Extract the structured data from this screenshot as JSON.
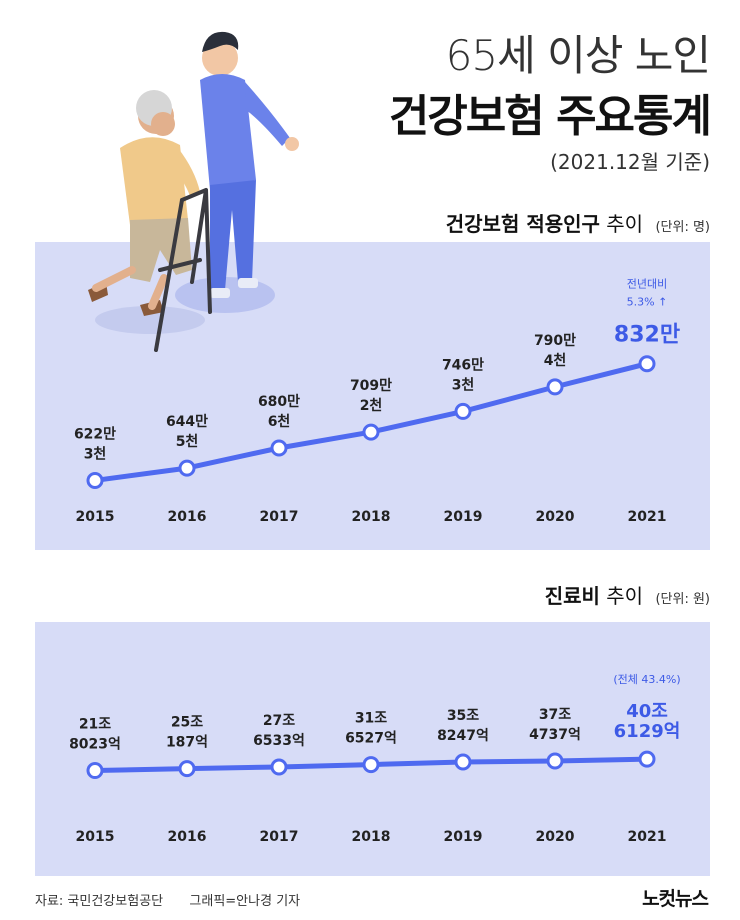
{
  "header": {
    "title_line1": "65세 이상 노인",
    "title_line2": "건강보험 주요통계",
    "basis": "(2021.12월 기준)"
  },
  "section1": {
    "title_bold": "건강보험 적용인구",
    "title_rest": "추이",
    "unit": "(단위: 명)",
    "yoy_label": "전년대비",
    "yoy_value": "5.3% ↑"
  },
  "section2": {
    "title_bold": "진료비",
    "title_rest": "추이",
    "unit": "(단위: 원)",
    "share_label": "(전체 43.4%)"
  },
  "footer": {
    "source": "자료: 국민건강보험공단",
    "credit": "그래픽=안나경 기자",
    "logo": "노컷뉴스"
  },
  "colors": {
    "panel": "#d7dcf7",
    "line": "#4f6af0",
    "highlight": "#3d5ae6"
  },
  "chart_data": [
    {
      "type": "line",
      "title": "건강보험 적용인구 추이",
      "unit": "명",
      "x": [
        "2015",
        "2016",
        "2017",
        "2018",
        "2019",
        "2020",
        "2021"
      ],
      "values": [
        6223000,
        6445000,
        6806000,
        7092000,
        7463000,
        7904000,
        8320000
      ],
      "labels": [
        [
          "622만",
          "3천"
        ],
        [
          "644만",
          "5천"
        ],
        [
          "680만",
          "6천"
        ],
        [
          "709만",
          "2천"
        ],
        [
          "746만",
          "3천"
        ],
        [
          "790만",
          "4천"
        ],
        [
          "832만"
        ]
      ],
      "ylim": [
        5800000,
        8800000
      ]
    },
    {
      "type": "line",
      "title": "진료비 추이",
      "unit": "원",
      "x": [
        "2015",
        "2016",
        "2017",
        "2018",
        "2019",
        "2020",
        "2021"
      ],
      "values": [
        218023,
        250187,
        276533,
        316527,
        358247,
        374737,
        406129
      ],
      "values_unit": "억원",
      "labels": [
        [
          "21조",
          "8023억"
        ],
        [
          "25조",
          "187억"
        ],
        [
          "27조",
          "6533억"
        ],
        [
          "31조",
          "6527억"
        ],
        [
          "35조",
          "8247억"
        ],
        [
          "37조",
          "4737억"
        ],
        [
          "40조",
          "6129억"
        ]
      ],
      "ylim": [
        -300000,
        1100000
      ]
    }
  ]
}
